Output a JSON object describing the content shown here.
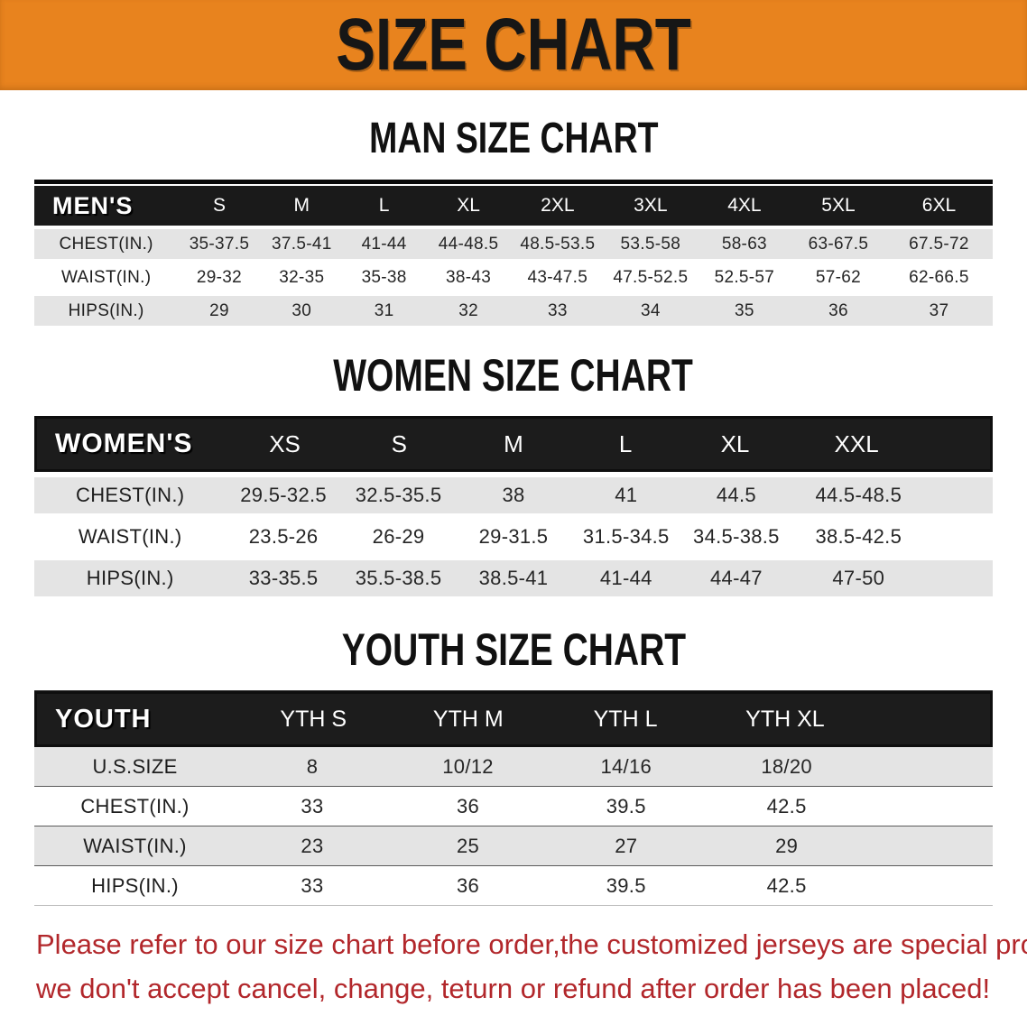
{
  "banner": {
    "title": "SIZE CHART"
  },
  "colors": {
    "banner_bg": "#e8831e",
    "band_bg": "#1a1a1a",
    "band_text": "#ffffff",
    "row_alt_bg": "#e4e4e4",
    "heading_text": "#111111",
    "footer_text": "#b2272b"
  },
  "men": {
    "heading": "MAN SIZE CHART",
    "corner": "MEN'S",
    "columns": [
      "S",
      "M",
      "L",
      "XL",
      "2XL",
      "3XL",
      "4XL",
      "5XL",
      "6XL"
    ],
    "rows": [
      {
        "label": "CHEST(IN.)",
        "values": [
          "35-37.5",
          "37.5-41",
          "41-44",
          "44-48.5",
          "48.5-53.5",
          "53.5-58",
          "58-63",
          "63-67.5",
          "67.5-72"
        ]
      },
      {
        "label": "WAIST(IN.)",
        "values": [
          "29-32",
          "32-35",
          "35-38",
          "38-43",
          "43-47.5",
          "47.5-52.5",
          "52.5-57",
          "57-62",
          "62-66.5"
        ]
      },
      {
        "label": "HIPS(IN.)",
        "values": [
          "29",
          "30",
          "31",
          "32",
          "33",
          "34",
          "35",
          "36",
          "37"
        ]
      }
    ]
  },
  "women": {
    "heading": "WOMEN SIZE CHART",
    "corner": "WOMEN'S",
    "columns": [
      "XS",
      "S",
      "M",
      "L",
      "XL",
      "XXL"
    ],
    "rows": [
      {
        "label": "CHEST(IN.)",
        "values": [
          "29.5-32.5",
          "32.5-35.5",
          "38",
          "41",
          "44.5",
          "44.5-48.5"
        ]
      },
      {
        "label": "WAIST(IN.)",
        "values": [
          "23.5-26",
          "26-29",
          "29-31.5",
          "31.5-34.5",
          "34.5-38.5",
          "38.5-42.5"
        ]
      },
      {
        "label": "HIPS(IN.)",
        "values": [
          "33-35.5",
          "35.5-38.5",
          "38.5-41",
          "41-44",
          "44-47",
          "47-50"
        ]
      }
    ]
  },
  "youth": {
    "heading": "YOUTH SIZE CHART",
    "corner": "YOUTH",
    "columns": [
      "YTH S",
      "YTH M",
      "YTH L",
      "YTH XL"
    ],
    "rows": [
      {
        "label": "U.S.SIZE",
        "values": [
          "8",
          "10/12",
          "14/16",
          "18/20"
        ]
      },
      {
        "label": "CHEST(IN.)",
        "values": [
          "33",
          "36",
          "39.5",
          "42.5"
        ]
      },
      {
        "label": "WAIST(IN.)",
        "values": [
          "23",
          "25",
          "27",
          "29"
        ]
      },
      {
        "label": "HIPS(IN.)",
        "values": [
          "33",
          "36",
          "39.5",
          "42.5"
        ]
      }
    ]
  },
  "footer": {
    "line1": "Please refer to our size chart before order,the customized jerseys are special products,",
    "line2": "we don't accept cancel, change, teturn or refund after order has been placed!"
  }
}
